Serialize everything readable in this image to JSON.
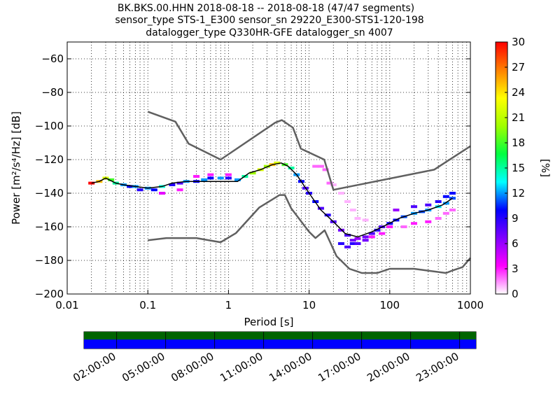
{
  "title": {
    "line1": "BK.BKS.00.HHN   2018-08-18 -- 2018-08-18  (47/47 segments)",
    "line2": "sensor_type STS-1_E300 sensor_sn 29220_E300-STS1-120-198",
    "line3": "datalogger_type Q330HR-GFE datalogger_sn 4007"
  },
  "chart_data": [
    {
      "type": "heatmap",
      "subtype": "probabilistic-power-spectral-density",
      "xlabel": "Period [s]",
      "ylabel": "Power [m²/s⁴/Hz] [dB]",
      "x_scale": "log",
      "xlim": [
        0.01,
        1000
      ],
      "ylim": [
        -200,
        -50
      ],
      "x_ticks": [
        0.01,
        0.1,
        1,
        10,
        100,
        1000
      ],
      "x_tick_labels": [
        "0.01",
        "0.1",
        "1",
        "10",
        "100",
        "1000"
      ],
      "y_ticks": [
        -200,
        -180,
        -160,
        -140,
        -120,
        -100,
        -80,
        -60
      ],
      "y_tick_labels": [
        "−200",
        "−180",
        "−160",
        "−140",
        "−120",
        "−100",
        "−80",
        "−60"
      ],
      "grid": "dotted, per decade minor ticks",
      "colorbar": {
        "label": "[%]",
        "range": [
          0,
          30
        ],
        "ticks": [
          0,
          3,
          6,
          9,
          12,
          15,
          18,
          21,
          24,
          27,
          30
        ],
        "tick_labels": [
          "0",
          "3",
          "6",
          "9",
          "12",
          "15",
          "18",
          "21",
          "24",
          "27",
          "30"
        ],
        "colormap": [
          "#ffffff",
          "#ff00ff",
          "#8000ff",
          "#0000ff",
          "#00ffff",
          "#00ff40",
          "#a0ff00",
          "#ffff00",
          "#ff8000",
          "#ff0000"
        ]
      },
      "series": [
        {
          "role": "new-high-noise-model",
          "color": "#606060",
          "points": [
            [
              0.1,
              -91.5
            ],
            [
              0.22,
              -97.4
            ],
            [
              0.32,
              -110.5
            ],
            [
              0.8,
              -120
            ],
            [
              3.8,
              -98
            ],
            [
              4.6,
              -96.5
            ],
            [
              6.3,
              -101
            ],
            [
              7.9,
              -113.5
            ],
            [
              15.4,
              -120
            ],
            [
              20,
              -138
            ],
            [
              354.8,
              -126
            ],
            [
              1000,
              -112
            ]
          ]
        },
        {
          "role": "new-low-noise-model",
          "color": "#606060",
          "points": [
            [
              0.1,
              -168
            ],
            [
              0.17,
              -166.7
            ],
            [
              0.4,
              -166.7
            ],
            [
              0.8,
              -169.2
            ],
            [
              1.24,
              -163.7
            ],
            [
              2.4,
              -148.6
            ],
            [
              4.3,
              -141.1
            ],
            [
              5,
              -141.1
            ],
            [
              6,
              -149
            ],
            [
              10,
              -163
            ],
            [
              12,
              -166.7
            ],
            [
              15.6,
              -162.1
            ],
            [
              21.9,
              -177.5
            ],
            [
              31.6,
              -185
            ],
            [
              45,
              -187.5
            ],
            [
              70,
              -187.5
            ],
            [
              100,
              -185
            ],
            [
              200,
              -185
            ],
            [
              500,
              -187.5
            ],
            [
              600,
              -186
            ],
            [
              800,
              -184
            ],
            [
              1000,
              -178.5
            ]
          ]
        },
        {
          "role": "mode",
          "color": "#000000",
          "points": [
            [
              0.02,
              -134
            ],
            [
              0.025,
              -133
            ],
            [
              0.03,
              -131
            ],
            [
              0.04,
              -134
            ],
            [
              0.05,
              -135
            ],
            [
              0.07,
              -136
            ],
            [
              0.1,
              -137
            ],
            [
              0.15,
              -136
            ],
            [
              0.2,
              -134
            ],
            [
              0.3,
              -133
            ],
            [
              0.5,
              -133
            ],
            [
              0.8,
              -133
            ],
            [
              1.3,
              -133
            ],
            [
              1.8,
              -128
            ],
            [
              2.5,
              -126
            ],
            [
              3.5,
              -123
            ],
            [
              4.5,
              -122
            ],
            [
              5.5,
              -124
            ],
            [
              7,
              -129
            ],
            [
              10,
              -140
            ],
            [
              14,
              -150
            ],
            [
              20,
              -157
            ],
            [
              28,
              -164
            ],
            [
              40,
              -166
            ],
            [
              60,
              -163
            ],
            [
              90,
              -159
            ],
            [
              130,
              -155
            ],
            [
              200,
              -152
            ],
            [
              300,
              -150
            ],
            [
              450,
              -147
            ],
            [
              600,
              -143
            ]
          ]
        }
      ],
      "density_cells": [
        [
          0.02,
          -134,
          30
        ],
        [
          0.025,
          -133,
          25
        ],
        [
          0.03,
          -131,
          22
        ],
        [
          0.035,
          -132,
          18
        ],
        [
          0.04,
          -134,
          15
        ],
        [
          0.05,
          -135,
          12
        ],
        [
          0.06,
          -136,
          10
        ],
        [
          0.07,
          -136,
          12
        ],
        [
          0.08,
          -138,
          9
        ],
        [
          0.1,
          -137,
          12
        ],
        [
          0.12,
          -138,
          10
        ],
        [
          0.15,
          -136,
          14
        ],
        [
          0.2,
          -135,
          9
        ],
        [
          0.25,
          -134,
          8
        ],
        [
          0.3,
          -133,
          12
        ],
        [
          0.4,
          -133,
          10
        ],
        [
          0.5,
          -132,
          12
        ],
        [
          0.6,
          -131,
          10
        ],
        [
          0.8,
          -131,
          12
        ],
        [
          1.0,
          -131,
          9
        ],
        [
          1.3,
          -132,
          12
        ],
        [
          1.6,
          -130,
          15
        ],
        [
          2.0,
          -128,
          20
        ],
        [
          2.5,
          -126,
          22
        ],
        [
          3.0,
          -124,
          20
        ],
        [
          3.5,
          -123,
          25
        ],
        [
          4.0,
          -122,
          22
        ],
        [
          5.0,
          -123,
          18
        ],
        [
          6.0,
          -125,
          15
        ],
        [
          7.0,
          -129,
          12
        ],
        [
          8.0,
          -133,
          10
        ],
        [
          9.0,
          -137,
          8
        ],
        [
          10,
          -140,
          9
        ],
        [
          12,
          -145,
          10
        ],
        [
          14,
          -149,
          8
        ],
        [
          17,
          -153,
          9
        ],
        [
          20,
          -157,
          8
        ],
        [
          25,
          -162,
          7
        ],
        [
          30,
          -165,
          8
        ],
        [
          35,
          -168,
          7
        ],
        [
          40,
          -167,
          6
        ],
        [
          50,
          -166,
          7
        ],
        [
          60,
          -164,
          8
        ],
        [
          70,
          -162,
          9
        ],
        [
          80,
          -160,
          8
        ],
        [
          100,
          -158,
          10
        ],
        [
          120,
          -156,
          10
        ],
        [
          150,
          -154,
          11
        ],
        [
          200,
          -152,
          12
        ],
        [
          250,
          -151,
          11
        ],
        [
          300,
          -150,
          12
        ],
        [
          400,
          -148,
          13
        ],
        [
          500,
          -146,
          12
        ],
        [
          600,
          -143,
          11
        ],
        [
          0.15,
          -140,
          4
        ],
        [
          0.25,
          -138,
          3
        ],
        [
          0.4,
          -130,
          3
        ],
        [
          0.6,
          -129,
          3
        ],
        [
          1.0,
          -129,
          3
        ],
        [
          12,
          -124,
          2
        ],
        [
          14,
          -124,
          2
        ],
        [
          16,
          -126,
          2
        ],
        [
          18,
          -134,
          2
        ],
        [
          20,
          -135,
          1
        ],
        [
          25,
          -140,
          1
        ],
        [
          30,
          -145,
          1
        ],
        [
          35,
          -150,
          1
        ],
        [
          40,
          -155,
          1
        ],
        [
          50,
          -156,
          1
        ],
        [
          60,
          -166,
          3
        ],
        [
          80,
          -164,
          3
        ],
        [
          100,
          -160,
          3
        ],
        [
          150,
          -160,
          2
        ],
        [
          200,
          -158,
          3
        ],
        [
          300,
          -157,
          3
        ],
        [
          400,
          -155,
          2
        ],
        [
          500,
          -152,
          2
        ],
        [
          600,
          -150,
          2
        ],
        [
          25,
          -170,
          9
        ],
        [
          30,
          -172,
          8
        ],
        [
          35,
          -170,
          9
        ],
        [
          40,
          -170,
          8
        ],
        [
          50,
          -168,
          7
        ],
        [
          120,
          -150,
          6
        ],
        [
          200,
          -148,
          8
        ],
        [
          300,
          -147,
          8
        ],
        [
          400,
          -145,
          9
        ],
        [
          500,
          -142,
          10
        ],
        [
          600,
          -140,
          10
        ]
      ]
    },
    {
      "type": "timeline",
      "role": "data-coverage",
      "x_tick_labels": [
        "02:00:00",
        "05:00:00",
        "08:00:00",
        "11:00:00",
        "14:00:00",
        "17:00:00",
        "20:00:00",
        "23:00:00"
      ],
      "x_tick_hours": [
        2,
        5,
        8,
        11,
        14,
        17,
        20,
        23
      ],
      "xlim_hours": [
        0,
        24
      ],
      "segments_used_color": "#006400",
      "data_present_color": "#0000ff",
      "segments_used": [
        0,
        24
      ],
      "data_present": [
        0,
        24
      ]
    }
  ]
}
